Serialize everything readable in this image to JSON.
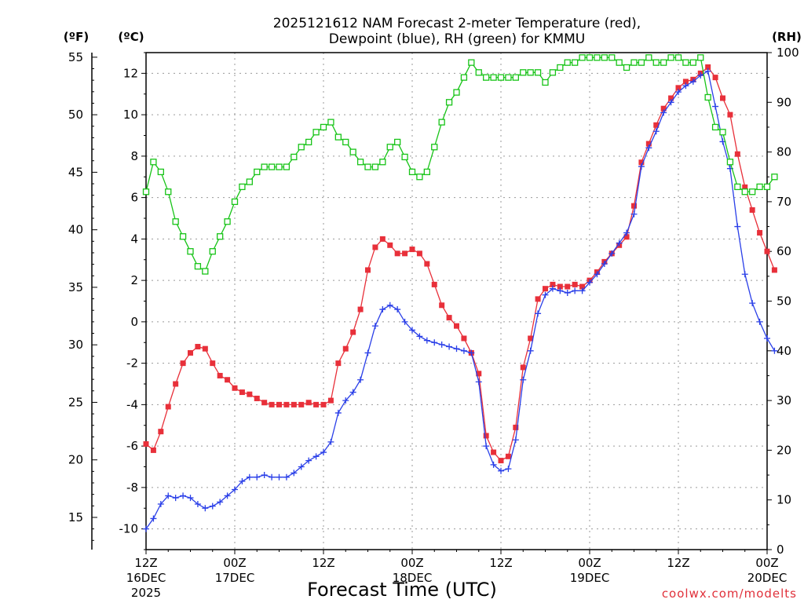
{
  "chart_data": {
    "type": "line",
    "title_line1": "2025121612 NAM Forecast 2-meter Temperature (red),",
    "title_line2": "Dewpoint (blue), RH (green) for KMMU",
    "xlabel": "Forecast Time (UTC)",
    "credit": "coolwx.com/modelts",
    "units": {
      "fahrenheit": "(ºF)",
      "celsius": "(ºC)",
      "rh": "(RH)"
    },
    "x_hours_range": [
      0,
      84
    ],
    "x_ticks": [
      {
        "hour": 0,
        "l1": "12Z",
        "l2": "16DEC",
        "l3": "2025"
      },
      {
        "hour": 12,
        "l1": "00Z",
        "l2": "17DEC",
        "l3": ""
      },
      {
        "hour": 24,
        "l1": "12Z",
        "l2": "",
        "l3": ""
      },
      {
        "hour": 36,
        "l1": "00Z",
        "l2": "18DEC",
        "l3": ""
      },
      {
        "hour": 48,
        "l1": "12Z",
        "l2": "",
        "l3": ""
      },
      {
        "hour": 60,
        "l1": "00Z",
        "l2": "19DEC",
        "l3": ""
      },
      {
        "hour": 72,
        "l1": "12Z",
        "l2": "",
        "l3": ""
      },
      {
        "hour": 84,
        "l1": "00Z",
        "l2": "20DEC",
        "l3": ""
      }
    ],
    "celsius_range": [
      -11,
      13
    ],
    "celsius_ticks": [
      "-10",
      "-8",
      "-6",
      "-4",
      "-2",
      "0",
      "2",
      "4",
      "6",
      "8",
      "10",
      "12"
    ],
    "fahrenheit_ticks": [
      "15",
      "20",
      "25",
      "30",
      "35",
      "40",
      "45",
      "50",
      "55"
    ],
    "rh_range": [
      0,
      100
    ],
    "rh_ticks": [
      "0",
      "10",
      "20",
      "30",
      "40",
      "50",
      "60",
      "70",
      "80",
      "90",
      "100"
    ],
    "series": [
      {
        "name": "Temperature",
        "unit": "C",
        "color": "#e8303a",
        "marker": "filled-square",
        "values": [
          -5.9,
          -6.2,
          -5.3,
          -4.1,
          -3.0,
          -2.0,
          -1.5,
          -1.2,
          -1.3,
          -2.0,
          -2.6,
          -2.8,
          -3.2,
          -3.4,
          -3.5,
          -3.7,
          -3.9,
          -4.0,
          -4.0,
          -4.0,
          -4.0,
          -4.0,
          -3.9,
          -4.0,
          -4.0,
          -3.8,
          -2.0,
          -1.3,
          -0.5,
          0.6,
          2.5,
          3.6,
          4.0,
          3.7,
          3.3,
          3.3,
          3.5,
          3.3,
          2.8,
          1.8,
          0.8,
          0.2,
          -0.2,
          -0.8,
          -1.5,
          -2.5,
          -5.5,
          -6.3,
          -6.7,
          -6.5,
          -5.1,
          -2.2,
          -0.8,
          1.1,
          1.6,
          1.8,
          1.7,
          1.7,
          1.8,
          1.7,
          2.0,
          2.4,
          2.9,
          3.3,
          3.7,
          4.1,
          5.6,
          7.7,
          8.6,
          9.5,
          10.3,
          10.8,
          11.3,
          11.6,
          11.7,
          12.0,
          12.3,
          11.8,
          10.8,
          10.0,
          8.1,
          6.5,
          5.4,
          4.3,
          3.4,
          2.5
        ]
      },
      {
        "name": "Dewpoint",
        "unit": "C",
        "color": "#2a3fe8",
        "marker": "plus",
        "values": [
          -10.0,
          -9.5,
          -8.8,
          -8.4,
          -8.5,
          -8.4,
          -8.5,
          -8.8,
          -9.0,
          -8.9,
          -8.7,
          -8.4,
          -8.1,
          -7.7,
          -7.5,
          -7.5,
          -7.4,
          -7.5,
          -7.5,
          -7.5,
          -7.3,
          -7.0,
          -6.7,
          -6.5,
          -6.3,
          -5.8,
          -4.4,
          -3.8,
          -3.4,
          -2.8,
          -1.5,
          -0.2,
          0.6,
          0.8,
          0.6,
          0.0,
          -0.4,
          -0.7,
          -0.9,
          -1.0,
          -1.1,
          -1.2,
          -1.3,
          -1.4,
          -1.5,
          -2.9,
          -6.0,
          -6.9,
          -7.2,
          -7.1,
          -5.7,
          -2.8,
          -1.4,
          0.4,
          1.3,
          1.6,
          1.5,
          1.4,
          1.5,
          1.5,
          1.9,
          2.3,
          2.8,
          3.3,
          3.8,
          4.3,
          5.2,
          7.5,
          8.4,
          9.2,
          10.1,
          10.6,
          11.1,
          11.4,
          11.6,
          11.9,
          12.1,
          10.4,
          8.7,
          7.4,
          4.6,
          2.3,
          0.9,
          0.0,
          -0.8,
          -1.4
        ]
      },
      {
        "name": "RH",
        "unit": "%",
        "color": "#18c418",
        "marker": "open-square",
        "values": [
          72,
          78,
          76,
          72,
          66,
          63,
          60,
          57,
          56,
          60,
          63,
          66,
          70,
          73,
          74,
          76,
          77,
          77,
          77,
          77,
          79,
          81,
          82,
          84,
          85,
          86,
          83,
          82,
          80,
          78,
          77,
          77,
          78,
          81,
          82,
          79,
          76,
          75,
          76,
          81,
          86,
          90,
          92,
          95,
          98,
          96,
          95,
          95,
          95,
          95,
          95,
          96,
          96,
          96,
          94,
          96,
          97,
          98,
          98,
          99,
          99,
          99,
          99,
          99,
          98,
          97,
          98,
          98,
          99,
          98,
          98,
          99,
          99,
          98,
          98,
          99,
          91,
          85,
          84,
          78,
          73,
          72,
          72,
          73,
          73,
          75
        ]
      }
    ]
  }
}
